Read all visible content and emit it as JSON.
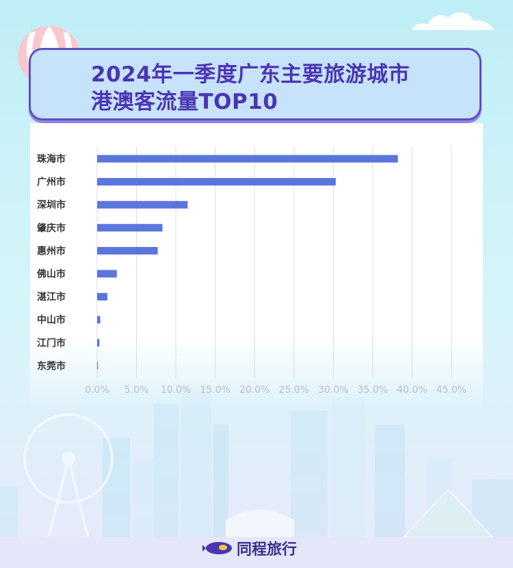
{
  "title": {
    "line1": "2024年一季度广东主要旅游城市",
    "line2": "港澳客流量TOP10"
  },
  "brand": {
    "name": "同程旅行"
  },
  "colors": {
    "bar": "#5a76dc",
    "title": "#4a35b3",
    "grid": "#dcdcdc",
    "tick": "#bdbdbd"
  },
  "chart_data": {
    "type": "bar",
    "orientation": "horizontal",
    "categories": [
      "珠海市",
      "广州市",
      "深圳市",
      "肇庆市",
      "惠州市",
      "佛山市",
      "湛江市",
      "中山市",
      "江门市",
      "东莞市"
    ],
    "values": [
      38.2,
      30.3,
      11.5,
      8.3,
      7.7,
      2.5,
      1.3,
      0.4,
      0.3,
      0.1
    ],
    "xlim": [
      0,
      45
    ],
    "xticks": [
      "0.0%",
      "5.0%",
      "10.0%",
      "15.0%",
      "20.0%",
      "25.0%",
      "30.0%",
      "35.0%",
      "40.0%",
      "45.0%"
    ],
    "grid": "vertical",
    "legend": "none"
  }
}
